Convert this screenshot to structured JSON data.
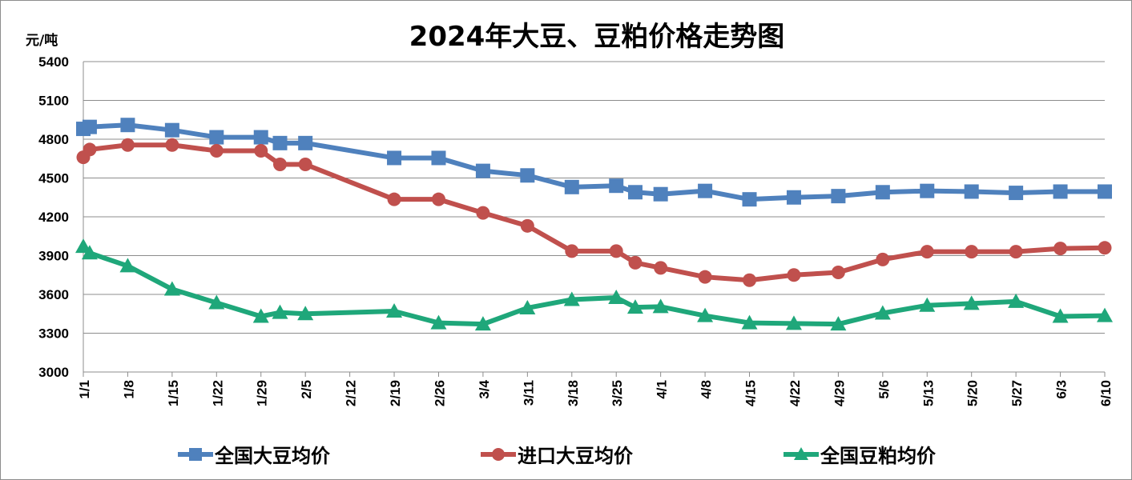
{
  "chart_data": {
    "type": "line",
    "title": "2024年大豆、豆粕价格走势图",
    "ylabel": "元/吨",
    "ylim": [
      3000,
      5400
    ],
    "yticks": [
      3000,
      3300,
      3600,
      3900,
      4200,
      4500,
      4800,
      5100,
      5400
    ],
    "xticks": [
      "1/1",
      "1/8",
      "1/15",
      "1/22",
      "1/29",
      "2/5",
      "2/12",
      "2/19",
      "2/26",
      "3/4",
      "3/11",
      "3/18",
      "3/25",
      "4/1",
      "4/8",
      "4/15",
      "4/22",
      "4/29",
      "5/6",
      "5/13",
      "5/20",
      "5/27",
      "6/3",
      "6/10"
    ],
    "grid": true,
    "legend_position": "bottom",
    "series": [
      {
        "name": "全国大豆均价",
        "color": "#4f81bd",
        "marker": "square",
        "points": [
          [
            "1/1",
            4880
          ],
          [
            "1/2",
            4895
          ],
          [
            "1/8",
            4910
          ],
          [
            "1/15",
            4870
          ],
          [
            "1/22",
            4815
          ],
          [
            "1/29",
            4815
          ],
          [
            "2/1",
            4770
          ],
          [
            "2/5",
            4770
          ],
          [
            "2/19",
            4655
          ],
          [
            "2/26",
            4655
          ],
          [
            "3/4",
            4555
          ],
          [
            "3/11",
            4520
          ],
          [
            "3/18",
            4430
          ],
          [
            "3/25",
            4440
          ],
          [
            "3/28",
            4390
          ],
          [
            "4/1",
            4375
          ],
          [
            "4/8",
            4400
          ],
          [
            "4/15",
            4335
          ],
          [
            "4/22",
            4350
          ],
          [
            "4/29",
            4360
          ],
          [
            "5/6",
            4390
          ],
          [
            "5/13",
            4400
          ],
          [
            "5/20",
            4395
          ],
          [
            "5/27",
            4385
          ],
          [
            "6/3",
            4395
          ],
          [
            "6/10",
            4395
          ]
        ]
      },
      {
        "name": "进口大豆均价",
        "color": "#c0504d",
        "marker": "circle",
        "points": [
          [
            "1/1",
            4660
          ],
          [
            "1/2",
            4720
          ],
          [
            "1/8",
            4755
          ],
          [
            "1/15",
            4755
          ],
          [
            "1/22",
            4710
          ],
          [
            "1/29",
            4710
          ],
          [
            "2/1",
            4605
          ],
          [
            "2/5",
            4605
          ],
          [
            "2/19",
            4335
          ],
          [
            "2/26",
            4335
          ],
          [
            "3/4",
            4230
          ],
          [
            "3/11",
            4130
          ],
          [
            "3/18",
            3935
          ],
          [
            "3/25",
            3935
          ],
          [
            "3/28",
            3845
          ],
          [
            "4/1",
            3805
          ],
          [
            "4/8",
            3735
          ],
          [
            "4/15",
            3710
          ],
          [
            "4/22",
            3750
          ],
          [
            "4/29",
            3770
          ],
          [
            "5/6",
            3870
          ],
          [
            "5/13",
            3930
          ],
          [
            "5/20",
            3930
          ],
          [
            "5/27",
            3930
          ],
          [
            "6/3",
            3955
          ],
          [
            "6/10",
            3960
          ]
        ]
      },
      {
        "name": "全国豆粕均价",
        "color": "#1fa77a",
        "marker": "triangle",
        "points": [
          [
            "1/1",
            3970
          ],
          [
            "1/2",
            3920
          ],
          [
            "1/8",
            3820
          ],
          [
            "1/15",
            3640
          ],
          [
            "1/22",
            3535
          ],
          [
            "1/29",
            3430
          ],
          [
            "2/1",
            3460
          ],
          [
            "2/5",
            3450
          ],
          [
            "2/19",
            3470
          ],
          [
            "2/26",
            3380
          ],
          [
            "3/4",
            3370
          ],
          [
            "3/11",
            3495
          ],
          [
            "3/18",
            3560
          ],
          [
            "3/25",
            3575
          ],
          [
            "3/28",
            3500
          ],
          [
            "4/1",
            3505
          ],
          [
            "4/8",
            3435
          ],
          [
            "4/15",
            3380
          ],
          [
            "4/22",
            3375
          ],
          [
            "4/29",
            3370
          ],
          [
            "5/6",
            3455
          ],
          [
            "5/13",
            3515
          ],
          [
            "5/20",
            3530
          ],
          [
            "5/27",
            3545
          ],
          [
            "6/3",
            3430
          ],
          [
            "6/10",
            3435
          ]
        ]
      }
    ]
  }
}
